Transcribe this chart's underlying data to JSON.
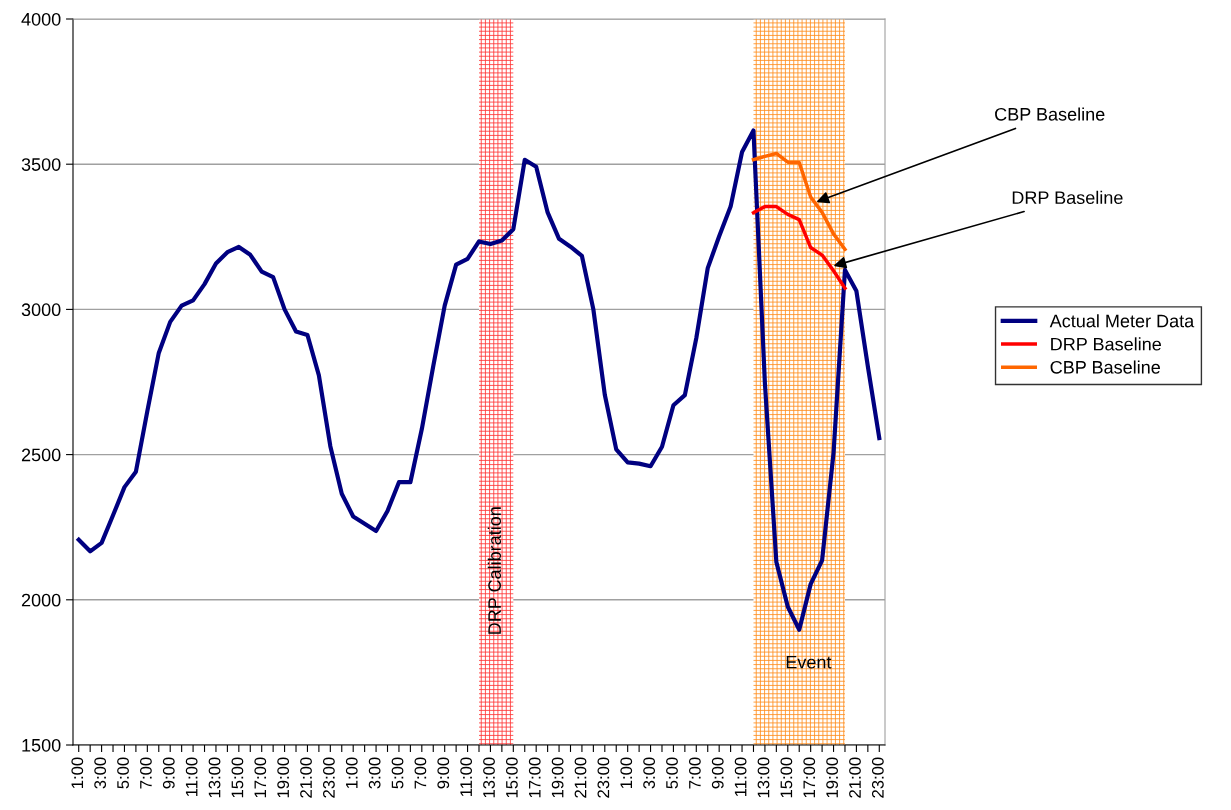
{
  "chart_data": {
    "type": "line",
    "x": [
      "2000-01-01T01:00",
      "2000-01-01T02:00",
      "2000-01-01T03:00",
      "2000-01-01T04:00",
      "2000-01-01T05:00",
      "2000-01-01T06:00",
      "2000-01-01T07:00",
      "2000-01-01T08:00",
      "2000-01-01T09:00",
      "2000-01-01T10:00",
      "2000-01-01T11:00",
      "2000-01-01T12:00",
      "2000-01-01T13:00",
      "2000-01-01T14:00",
      "2000-01-01T15:00",
      "2000-01-01T16:00",
      "2000-01-01T17:00",
      "2000-01-01T18:00",
      "2000-01-01T19:00",
      "2000-01-01T20:00",
      "2000-01-01T21:00",
      "2000-01-01T22:00",
      "2000-01-01T23:00",
      "2000-01-02T00:00",
      "2000-01-02T01:00",
      "2000-01-02T02:00",
      "2000-01-02T03:00",
      "2000-01-02T04:00",
      "2000-01-02T05:00",
      "2000-01-02T06:00",
      "2000-01-02T07:00",
      "2000-01-02T08:00",
      "2000-01-02T09:00",
      "2000-01-02T10:00",
      "2000-01-02T11:00",
      "2000-01-02T12:00",
      "2000-01-02T13:00",
      "2000-01-02T14:00",
      "2000-01-02T15:00",
      "2000-01-02T16:00",
      "2000-01-02T17:00",
      "2000-01-02T18:00",
      "2000-01-02T19:00",
      "2000-01-02T20:00",
      "2000-01-02T21:00",
      "2000-01-02T22:00",
      "2000-01-02T23:00",
      "2000-01-03T00:00",
      "2000-01-03T01:00",
      "2000-01-03T02:00",
      "2000-01-03T03:00",
      "2000-01-03T04:00",
      "2000-01-03T05:00",
      "2000-01-03T06:00",
      "2000-01-03T07:00",
      "2000-01-03T08:00",
      "2000-01-03T09:00",
      "2000-01-03T10:00",
      "2000-01-03T11:00",
      "2000-01-03T12:00",
      "2000-01-03T13:00",
      "2000-01-03T14:00",
      "2000-01-03T15:00",
      "2000-01-03T16:00",
      "2000-01-03T17:00",
      "2000-01-03T18:00",
      "2000-01-03T19:00",
      "2000-01-03T20:00",
      "2000-01-03T21:00",
      "2000-01-03T22:00",
      "2000-01-03T23:00"
    ],
    "xlim": [
      "2000-01-01T00:30",
      "2000-01-03T23:30"
    ],
    "xticks": [
      {
        "value": "2000-01-01T01:00",
        "label": "1:00"
      },
      {
        "value": "2000-01-01T02:00",
        "label": null
      },
      {
        "value": "2000-01-01T03:00",
        "label": "3:00"
      },
      {
        "value": "2000-01-01T04:00",
        "label": null
      },
      {
        "value": "2000-01-01T05:00",
        "label": "5:00"
      },
      {
        "value": "2000-01-01T06:00",
        "label": null
      },
      {
        "value": "2000-01-01T07:00",
        "label": "7:00"
      },
      {
        "value": "2000-01-01T08:00",
        "label": null
      },
      {
        "value": "2000-01-01T09:00",
        "label": "9:00"
      },
      {
        "value": "2000-01-01T10:00",
        "label": null
      },
      {
        "value": "2000-01-01T11:00",
        "label": "11:00"
      },
      {
        "value": "2000-01-01T12:00",
        "label": null
      },
      {
        "value": "2000-01-01T13:00",
        "label": "13:00"
      },
      {
        "value": "2000-01-01T14:00",
        "label": null
      },
      {
        "value": "2000-01-01T15:00",
        "label": "15:00"
      },
      {
        "value": "2000-01-01T16:00",
        "label": null
      },
      {
        "value": "2000-01-01T17:00",
        "label": "17:00"
      },
      {
        "value": "2000-01-01T18:00",
        "label": null
      },
      {
        "value": "2000-01-01T19:00",
        "label": "19:00"
      },
      {
        "value": "2000-01-01T20:00",
        "label": null
      },
      {
        "value": "2000-01-01T21:00",
        "label": "21:00"
      },
      {
        "value": "2000-01-01T22:00",
        "label": null
      },
      {
        "value": "2000-01-01T23:00",
        "label": "23:00"
      },
      {
        "value": "2000-01-02T00:00",
        "label": null
      },
      {
        "value": "2000-01-02T01:00",
        "label": "1:00"
      },
      {
        "value": "2000-01-02T02:00",
        "label": null
      },
      {
        "value": "2000-01-02T03:00",
        "label": "3:00"
      },
      {
        "value": "2000-01-02T04:00",
        "label": null
      },
      {
        "value": "2000-01-02T05:00",
        "label": "5:00"
      },
      {
        "value": "2000-01-02T06:00",
        "label": null
      },
      {
        "value": "2000-01-02T07:00",
        "label": "7:00"
      },
      {
        "value": "2000-01-02T08:00",
        "label": null
      },
      {
        "value": "2000-01-02T09:00",
        "label": "9:00"
      },
      {
        "value": "2000-01-02T10:00",
        "label": null
      },
      {
        "value": "2000-01-02T11:00",
        "label": "11:00"
      },
      {
        "value": "2000-01-02T12:00",
        "label": null
      },
      {
        "value": "2000-01-02T13:00",
        "label": "13:00"
      },
      {
        "value": "2000-01-02T14:00",
        "label": null
      },
      {
        "value": "2000-01-02T15:00",
        "label": "15:00"
      },
      {
        "value": "2000-01-02T16:00",
        "label": null
      },
      {
        "value": "2000-01-02T17:00",
        "label": "17:00"
      },
      {
        "value": "2000-01-02T18:00",
        "label": null
      },
      {
        "value": "2000-01-02T19:00",
        "label": "19:00"
      },
      {
        "value": "2000-01-02T20:00",
        "label": null
      },
      {
        "value": "2000-01-02T21:00",
        "label": "21:00"
      },
      {
        "value": "2000-01-02T22:00",
        "label": null
      },
      {
        "value": "2000-01-02T23:00",
        "label": "23:00"
      },
      {
        "value": "2000-01-03T00:00",
        "label": null
      },
      {
        "value": "2000-01-03T01:00",
        "label": "1:00"
      },
      {
        "value": "2000-01-03T02:00",
        "label": null
      },
      {
        "value": "2000-01-03T03:00",
        "label": "3:00"
      },
      {
        "value": "2000-01-03T04:00",
        "label": null
      },
      {
        "value": "2000-01-03T05:00",
        "label": "5:00"
      },
      {
        "value": "2000-01-03T06:00",
        "label": null
      },
      {
        "value": "2000-01-03T07:00",
        "label": "7:00"
      },
      {
        "value": "2000-01-03T08:00",
        "label": null
      },
      {
        "value": "2000-01-03T09:00",
        "label": "9:00"
      },
      {
        "value": "2000-01-03T10:00",
        "label": null
      },
      {
        "value": "2000-01-03T11:00",
        "label": "11:00"
      },
      {
        "value": "2000-01-03T12:00",
        "label": null
      },
      {
        "value": "2000-01-03T13:00",
        "label": "13:00"
      },
      {
        "value": "2000-01-03T14:00",
        "label": null
      },
      {
        "value": "2000-01-03T15:00",
        "label": "15:00"
      },
      {
        "value": "2000-01-03T16:00",
        "label": null
      },
      {
        "value": "2000-01-03T17:00",
        "label": "17:00"
      },
      {
        "value": "2000-01-03T18:00",
        "label": null
      },
      {
        "value": "2000-01-03T19:00",
        "label": "19:00"
      },
      {
        "value": "2000-01-03T20:00",
        "label": null
      },
      {
        "value": "2000-01-03T21:00",
        "label": "21:00"
      },
      {
        "value": "2000-01-03T22:00",
        "label": null
      },
      {
        "value": "2000-01-03T23:00",
        "label": "23:00"
      }
    ],
    "ylim": [
      1500,
      4000
    ],
    "yticks": [
      1500,
      2000,
      2500,
      3000,
      3500,
      4000
    ],
    "grid": "y",
    "legend": "right",
    "marker": "none",
    "line_style": "solid",
    "series": [
      {
        "name": "Actual Meter Data",
        "color": "#000080",
        "values": [
          2207,
          2167,
          2196,
          2291,
          2388,
          2441,
          2650,
          2850,
          2957,
          3013,
          3031,
          3087,
          3158,
          3197,
          3215,
          3188,
          3130,
          3111,
          3000,
          2924,
          2912,
          2773,
          2529,
          2365,
          2287,
          2262,
          2237,
          2306,
          2405,
          2405,
          2588,
          2805,
          3013,
          3154,
          3174,
          3234,
          3225,
          3237,
          3276,
          3515,
          3491,
          3334,
          3243,
          3216,
          3184,
          3000,
          2706,
          2518,
          2473,
          2469,
          2460,
          2527,
          2670,
          2705,
          2901,
          3142,
          3252,
          3354,
          3542,
          3616,
          2745,
          2130,
          1976,
          1897,
          2054,
          2136,
          2506,
          3136,
          3063,
          2804,
          2557
        ]
      },
      {
        "name": "DRP Baseline",
        "color": "#ff0000",
        "values": [
          null,
          null,
          null,
          null,
          null,
          null,
          null,
          null,
          null,
          null,
          null,
          null,
          null,
          null,
          null,
          null,
          null,
          null,
          null,
          null,
          null,
          null,
          null,
          null,
          null,
          null,
          null,
          null,
          null,
          null,
          null,
          null,
          null,
          null,
          null,
          null,
          null,
          null,
          null,
          null,
          null,
          null,
          null,
          null,
          null,
          null,
          null,
          null,
          null,
          null,
          null,
          null,
          null,
          null,
          null,
          null,
          null,
          null,
          null,
          3333,
          3354,
          3354,
          3327,
          3309,
          3213,
          3187,
          3133,
          3073,
          null,
          null,
          null
        ]
      },
      {
        "name": "CBP Baseline",
        "color": "#ff6600",
        "values": [
          null,
          null,
          null,
          null,
          null,
          null,
          null,
          null,
          null,
          null,
          null,
          null,
          null,
          null,
          null,
          null,
          null,
          null,
          null,
          null,
          null,
          null,
          null,
          null,
          null,
          null,
          null,
          null,
          null,
          null,
          null,
          null,
          null,
          null,
          null,
          null,
          null,
          null,
          null,
          null,
          null,
          null,
          null,
          null,
          null,
          null,
          null,
          null,
          null,
          null,
          null,
          null,
          null,
          null,
          null,
          null,
          null,
          null,
          null,
          3516,
          3527,
          3537,
          3507,
          3506,
          3387,
          3334,
          3260,
          3207,
          null,
          null,
          null
        ]
      }
    ],
    "bands": [
      {
        "axis": "x",
        "from": "2000-01-02T12:00",
        "to": "2000-01-02T15:00",
        "label": "DRP Calibration",
        "color": "#ff3333"
      },
      {
        "axis": "x",
        "from": "2000-01-03T12:00",
        "to": "2000-01-03T20:00",
        "label": "Event",
        "color": "#ff8c1a"
      }
    ],
    "annotations": [
      {
        "text": "CBP Baseline",
        "x": "2000-01-03T17:30",
        "y": 3370
      },
      {
        "text": "DRP Baseline",
        "x": "2000-01-03T19:00",
        "y": 3150
      }
    ]
  }
}
